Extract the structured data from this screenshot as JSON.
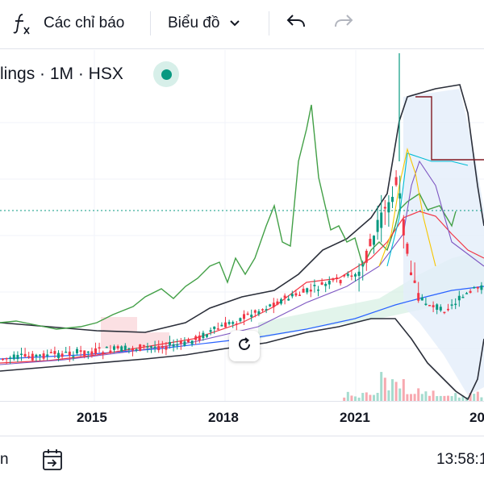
{
  "toolbar": {
    "indicators_label": "Các chỉ báo",
    "chart_type_label": "Biểu đồ",
    "fx_icon": "function-icon",
    "undo_icon": "undo-icon",
    "redo_icon": "redo-icon"
  },
  "legend": {
    "text": "lings · 1M · HSX",
    "status_color": "#089981"
  },
  "xaxis": {
    "labels": [
      "2015",
      "2018",
      "2021",
      "20"
    ]
  },
  "bottom": {
    "left_text": "n",
    "time_text": "13:58:1",
    "goto_date_icon": "calendar-goto-icon"
  },
  "colors": {
    "up": "#089981",
    "down": "#f23645",
    "bollinger": "#2a2e39",
    "lagging": "#388e3c"
  }
}
